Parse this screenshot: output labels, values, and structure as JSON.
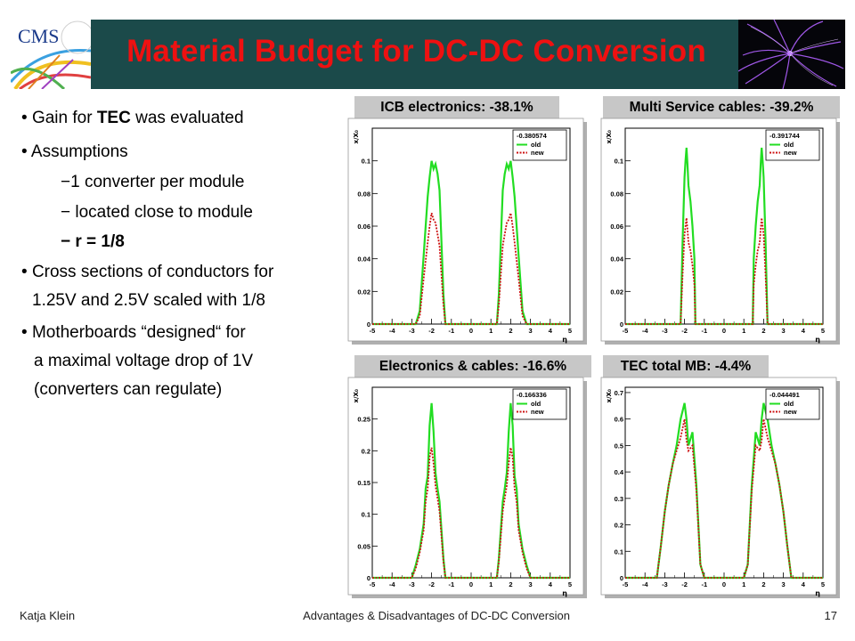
{
  "slide": {
    "title": "Material Budget for DC-DC Conversion",
    "logo_text": "CMS",
    "footer": {
      "author": "Katja Klein",
      "talk_title": "Advantages & Disadvantages of DC-DC Conversion",
      "page_number": "17"
    }
  },
  "bullets": [
    {
      "pre": "Gain for ",
      "bold": "TEC",
      "post": " was evaluated"
    },
    {
      "text": "Assumptions"
    },
    {
      "sub": "−1 converter per module"
    },
    {
      "sub": "− located close to module"
    },
    {
      "sub_bold": "− r = 1/8"
    },
    {
      "line1": "Cross sections of conductors for",
      "line2": "1.25V and 2.5V scaled with 1/8"
    },
    {
      "line1": "Motherboards “designed“ for",
      "line2": "a maximal voltage drop of 1V",
      "line3": "(converters can regulate)"
    }
  ],
  "colors": {
    "old": "#22dd22",
    "new": "#cc1111",
    "banner": "#1b4a4a",
    "title": "#ee1111"
  },
  "chart_data": [
    {
      "type": "line",
      "panel_label": "ICB electronics: -38.1%",
      "xlabel": "η",
      "ylabel": "x/X₀",
      "xlim": [
        -5,
        5
      ],
      "ylim": [
        0,
        0.12
      ],
      "xticks": [
        "-5",
        "-4",
        "-3",
        "-2",
        "-1",
        "0",
        "1",
        "2",
        "3",
        "4",
        "5"
      ],
      "yticks": [
        {
          "v": 0,
          "t": "0"
        },
        {
          "v": 0.02,
          "t": "0.02"
        },
        {
          "v": 0.04,
          "t": "0.04"
        },
        {
          "v": 0.06,
          "t": "0.06"
        },
        {
          "v": 0.08,
          "t": "0.08"
        },
        {
          "v": 0.1,
          "t": "0.1"
        }
      ],
      "legend_value": "-0.380574",
      "legend_position": "top-right",
      "series": [
        {
          "name": "old",
          "x": [
            -5,
            -2.8,
            -2.6,
            -2.4,
            -2.2,
            -2.1,
            -2.0,
            -1.9,
            -1.8,
            -1.7,
            -1.6,
            -1.4,
            -1.3,
            1.3,
            1.4,
            1.6,
            1.7,
            1.8,
            1.9,
            2.0,
            2.1,
            2.2,
            2.4,
            2.6,
            2.8,
            5
          ],
          "y": [
            0,
            0,
            0.008,
            0.042,
            0.078,
            0.09,
            0.1,
            0.095,
            0.098,
            0.092,
            0.082,
            0.018,
            0,
            0,
            0.018,
            0.082,
            0.092,
            0.098,
            0.095,
            0.1,
            0.09,
            0.078,
            0.042,
            0.008,
            0,
            0
          ]
        },
        {
          "name": "new",
          "x": [
            -5,
            -2.8,
            -2.6,
            -2.4,
            -2.2,
            -2.1,
            -2.0,
            -1.9,
            -1.8,
            -1.7,
            -1.6,
            -1.4,
            -1.3,
            1.3,
            1.4,
            1.6,
            1.7,
            1.8,
            1.9,
            2.0,
            2.1,
            2.2,
            2.4,
            2.6,
            2.8,
            5
          ],
          "y": [
            0,
            0,
            0.005,
            0.028,
            0.05,
            0.06,
            0.068,
            0.064,
            0.062,
            0.055,
            0.048,
            0.012,
            0,
            0,
            0.012,
            0.048,
            0.055,
            0.062,
            0.064,
            0.068,
            0.06,
            0.05,
            0.028,
            0.005,
            0,
            0
          ]
        }
      ]
    },
    {
      "type": "line",
      "panel_label": "Multi Service cables: -39.2%",
      "xlabel": "η",
      "ylabel": "x/X₀",
      "xlim": [
        -5,
        5
      ],
      "ylim": [
        0,
        0.12
      ],
      "xticks": [
        "-5",
        "-4",
        "-3",
        "-2",
        "-1",
        "0",
        "1",
        "2",
        "3",
        "4",
        "5"
      ],
      "yticks": [
        {
          "v": 0,
          "t": "0"
        },
        {
          "v": 0.02,
          "t": "0.02"
        },
        {
          "v": 0.04,
          "t": "0.04"
        },
        {
          "v": 0.06,
          "t": "0.06"
        },
        {
          "v": 0.08,
          "t": "0.08"
        },
        {
          "v": 0.1,
          "t": "0.1"
        }
      ],
      "legend_value": "-0.391744",
      "legend_position": "top-right",
      "series": [
        {
          "name": "old",
          "x": [
            -5,
            -2.2,
            -2.1,
            -2.0,
            -1.95,
            -1.9,
            -1.85,
            -1.8,
            -1.7,
            -1.6,
            -1.5,
            -1.45,
            1.45,
            1.5,
            1.6,
            1.7,
            1.8,
            1.85,
            1.9,
            1.95,
            2.0,
            2.1,
            2.2,
            5
          ],
          "y": [
            0,
            0,
            0.05,
            0.09,
            0.1,
            0.108,
            0.098,
            0.085,
            0.075,
            0.06,
            0.04,
            0,
            0,
            0.04,
            0.06,
            0.075,
            0.085,
            0.098,
            0.108,
            0.1,
            0.09,
            0.05,
            0,
            0
          ]
        },
        {
          "name": "new",
          "x": [
            -5,
            -2.2,
            -2.1,
            -2.0,
            -1.95,
            -1.9,
            -1.85,
            -1.8,
            -1.7,
            -1.6,
            -1.5,
            -1.45,
            1.45,
            1.5,
            1.6,
            1.7,
            1.8,
            1.85,
            1.9,
            1.95,
            2.0,
            2.1,
            2.2,
            5
          ],
          "y": [
            0,
            0,
            0.03,
            0.055,
            0.06,
            0.065,
            0.058,
            0.05,
            0.045,
            0.036,
            0.024,
            0,
            0,
            0.024,
            0.036,
            0.045,
            0.05,
            0.058,
            0.065,
            0.06,
            0.055,
            0.03,
            0,
            0
          ]
        }
      ]
    },
    {
      "type": "line",
      "panel_label": "Electronics & cables: -16.6%",
      "xlabel": "η",
      "ylabel": "x/X₀",
      "xlim": [
        -5,
        5
      ],
      "ylim": [
        0,
        0.3
      ],
      "xticks": [
        "-5",
        "-4",
        "-3",
        "-2",
        "-1",
        "0",
        "1",
        "2",
        "3",
        "4",
        "5"
      ],
      "yticks": [
        {
          "v": 0,
          "t": "0"
        },
        {
          "v": 0.05,
          "t": "0.05"
        },
        {
          "v": 0.1,
          "t": "0.1"
        },
        {
          "v": 0.15,
          "t": "0.15"
        },
        {
          "v": 0.2,
          "t": "0.2"
        },
        {
          "v": 0.25,
          "t": "0.25"
        }
      ],
      "legend_value": "-0.166336",
      "legend_position": "top-right",
      "series": [
        {
          "name": "old",
          "x": [
            -5,
            -3.0,
            -2.8,
            -2.6,
            -2.4,
            -2.3,
            -2.2,
            -2.1,
            -2.0,
            -1.9,
            -1.8,
            -1.7,
            -1.6,
            -1.4,
            -1.3,
            1.3,
            1.4,
            1.6,
            1.7,
            1.8,
            1.9,
            2.0,
            2.1,
            2.2,
            2.3,
            2.4,
            2.6,
            2.8,
            3.0,
            5
          ],
          "y": [
            0,
            0,
            0.02,
            0.045,
            0.085,
            0.14,
            0.16,
            0.24,
            0.275,
            0.23,
            0.165,
            0.14,
            0.12,
            0.03,
            0,
            0,
            0.03,
            0.12,
            0.14,
            0.165,
            0.23,
            0.275,
            0.24,
            0.16,
            0.14,
            0.085,
            0.045,
            0.02,
            0,
            0
          ]
        },
        {
          "name": "new",
          "x": [
            -5,
            -3.0,
            -2.8,
            -2.6,
            -2.4,
            -2.3,
            -2.2,
            -2.1,
            -2.0,
            -1.9,
            -1.8,
            -1.7,
            -1.6,
            -1.4,
            -1.3,
            1.3,
            1.4,
            1.6,
            1.7,
            1.8,
            1.9,
            2.0,
            2.1,
            2.2,
            2.3,
            2.4,
            2.6,
            2.8,
            3.0,
            5
          ],
          "y": [
            0,
            0,
            0.015,
            0.04,
            0.075,
            0.12,
            0.14,
            0.19,
            0.205,
            0.18,
            0.145,
            0.125,
            0.105,
            0.025,
            0,
            0,
            0.025,
            0.105,
            0.125,
            0.145,
            0.18,
            0.205,
            0.19,
            0.14,
            0.12,
            0.075,
            0.04,
            0.015,
            0,
            0
          ]
        }
      ]
    },
    {
      "type": "line",
      "panel_label": "TEC total MB: -4.4%",
      "xlabel": "η",
      "ylabel": "x/X₀",
      "xlim": [
        -5,
        5
      ],
      "ylim": [
        0,
        0.72
      ],
      "xticks": [
        "-5",
        "-4",
        "-3",
        "-2",
        "-1",
        "0",
        "1",
        "2",
        "3",
        "4",
        "5"
      ],
      "yticks": [
        {
          "v": 0,
          "t": "0"
        },
        {
          "v": 0.1,
          "t": "0.1"
        },
        {
          "v": 0.2,
          "t": "0.2"
        },
        {
          "v": 0.3,
          "t": "0.3"
        },
        {
          "v": 0.4,
          "t": "0.4"
        },
        {
          "v": 0.5,
          "t": "0.5"
        },
        {
          "v": 0.6,
          "t": "0.6"
        },
        {
          "v": 0.7,
          "t": "0.7"
        }
      ],
      "legend_value": "-0.044491",
      "legend_position": "top-right",
      "series": [
        {
          "name": "old",
          "x": [
            -5,
            -3.4,
            -3.2,
            -3.0,
            -2.8,
            -2.6,
            -2.4,
            -2.2,
            -2.0,
            -1.9,
            -1.8,
            -1.6,
            -1.4,
            -1.2,
            -1.0,
            1.0,
            1.2,
            1.4,
            1.6,
            1.8,
            1.9,
            2.0,
            2.2,
            2.4,
            2.6,
            2.8,
            3.0,
            3.2,
            3.4,
            5
          ],
          "y": [
            0,
            0,
            0.12,
            0.25,
            0.35,
            0.43,
            0.5,
            0.6,
            0.66,
            0.6,
            0.5,
            0.55,
            0.35,
            0.05,
            0,
            0,
            0.05,
            0.35,
            0.55,
            0.5,
            0.6,
            0.66,
            0.6,
            0.5,
            0.43,
            0.35,
            0.25,
            0.12,
            0,
            0
          ]
        },
        {
          "name": "new",
          "x": [
            -5,
            -3.4,
            -3.2,
            -3.0,
            -2.8,
            -2.6,
            -2.4,
            -2.2,
            -2.0,
            -1.9,
            -1.8,
            -1.6,
            -1.4,
            -1.2,
            -1.0,
            1.0,
            1.2,
            1.4,
            1.6,
            1.8,
            1.9,
            2.0,
            2.2,
            2.4,
            2.6,
            2.8,
            3.0,
            3.2,
            3.4,
            5
          ],
          "y": [
            0,
            0,
            0.12,
            0.25,
            0.35,
            0.43,
            0.48,
            0.53,
            0.6,
            0.52,
            0.48,
            0.5,
            0.33,
            0.05,
            0,
            0,
            0.05,
            0.33,
            0.5,
            0.48,
            0.52,
            0.6,
            0.53,
            0.48,
            0.43,
            0.35,
            0.25,
            0.12,
            0,
            0
          ]
        }
      ]
    }
  ]
}
